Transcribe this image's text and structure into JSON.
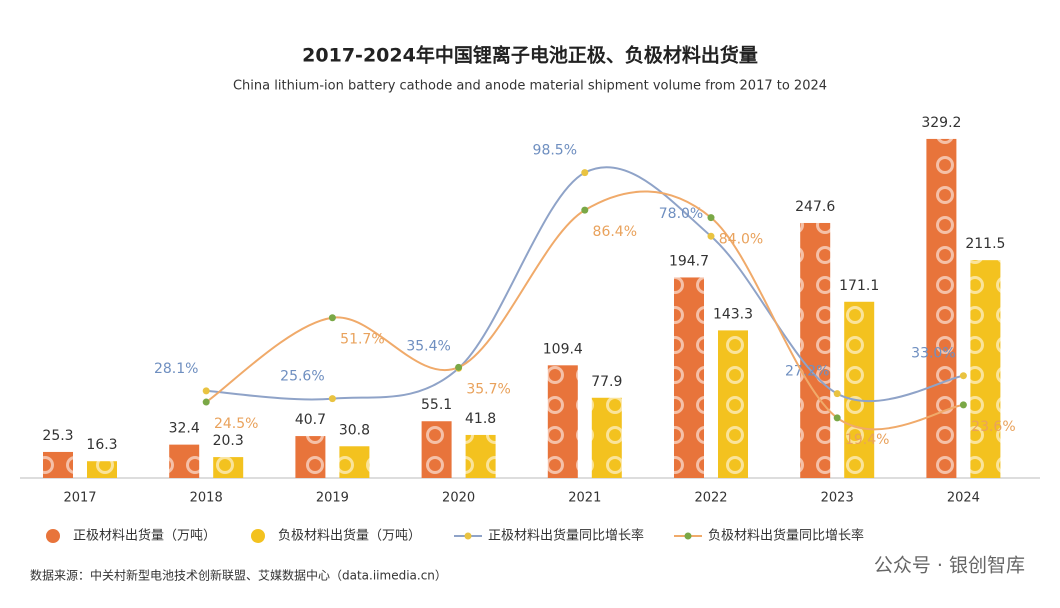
{
  "chart_data": {
    "type": "bar",
    "title": "2017-2024年中国锂离子电池正极、负极材料出货量",
    "subtitle": "China lithium-ion battery cathode and anode material shipment volume from 2017 to 2024",
    "categories": [
      "2017",
      "2018",
      "2019",
      "2020",
      "2021",
      "2022",
      "2023",
      "2024"
    ],
    "series": [
      {
        "name": "正极材料出货量（万吨）",
        "type": "bar",
        "color": "#e8743b",
        "values": [
          25.3,
          32.4,
          40.7,
          55.1,
          109.4,
          194.7,
          247.6,
          329.2
        ]
      },
      {
        "name": "负极材料出货量（万吨）",
        "type": "bar",
        "color": "#f3c21f",
        "values": [
          16.3,
          20.3,
          30.8,
          41.8,
          77.9,
          143.3,
          171.1,
          211.5
        ]
      },
      {
        "name": "正极材料出货量同比增长率",
        "type": "line",
        "color": "#8fa3c8",
        "marker_color": "#e9c341",
        "label_color": "#6f8fc0",
        "values": [
          null,
          28.1,
          25.6,
          35.4,
          98.5,
          78.0,
          27.2,
          33.0
        ],
        "value_labels": [
          null,
          "28.1%",
          "25.6%",
          "35.4%",
          "98.5%",
          "78.0%",
          "27.2%",
          "33.0%"
        ]
      },
      {
        "name": "负极材料出货量同比增长率",
        "type": "line",
        "color": "#f0aa6a",
        "marker_color": "#7aa846",
        "label_color": "#e9a25c",
        "values": [
          null,
          24.5,
          51.7,
          35.7,
          86.4,
          84.0,
          19.4,
          23.6
        ],
        "value_labels": [
          null,
          "24.5%",
          "51.7%",
          "35.7%",
          "86.4%",
          "84.0%",
          "19.4%",
          "23.6%"
        ]
      }
    ],
    "source": "数据来源：中关村新型电池技术创新联盟、艾媒数据中心（data.iimedia.cn）",
    "watermark": "公众号 · 银创智库"
  }
}
